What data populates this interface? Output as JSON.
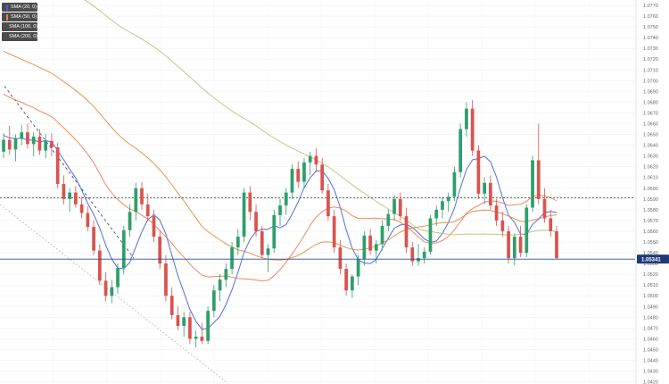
{
  "legend": [
    {
      "label": "SMA (20, 0)",
      "color": "#3d5fd6"
    },
    {
      "label": "SMA (50, 0)",
      "color": "#f07a4a"
    },
    {
      "label": "SMA (100, 0)",
      "color": "#e08a3a"
    },
    {
      "label": "SMA (200, 0)",
      "color": "#b9c27a"
    }
  ],
  "price_tag": "1.05341",
  "chart_data": {
    "type": "candlestick",
    "yticks": [
      "1.0770",
      "1.0760",
      "1.0750",
      "1.0740",
      "1.0730",
      "1.0720",
      "1.0710",
      "1.0700",
      "1.0690",
      "1.0680",
      "1.0670",
      "1.0660",
      "1.0650",
      "1.0640",
      "1.0630",
      "1.0620",
      "1.0610",
      "1.0600",
      "1.0590",
      "1.0580",
      "1.0570",
      "1.0560",
      "1.0550",
      "1.0540",
      "1.0530",
      "1.0520",
      "1.0510",
      "1.0500",
      "1.0490",
      "1.0480",
      "1.0470",
      "1.0460",
      "1.0450",
      "1.0440",
      "1.0430",
      "1.0420"
    ],
    "ylim": [
      1.0418,
      1.0775
    ],
    "current_price": 1.05341,
    "resistance_level": 1.0591,
    "up_color": "#2e9e6b",
    "down_color": "#d9534f",
    "candles": [
      [
        1.0634,
        1.0651,
        1.0628,
        1.0645
      ],
      [
        1.0645,
        1.0658,
        1.0631,
        1.0636
      ],
      [
        1.0636,
        1.065,
        1.0625,
        1.0646
      ],
      [
        1.0646,
        1.0659,
        1.064,
        1.0652
      ],
      [
        1.0652,
        1.066,
        1.0637,
        1.0641
      ],
      [
        1.0641,
        1.0652,
        1.063,
        1.0648
      ],
      [
        1.0648,
        1.0655,
        1.0631,
        1.0635
      ],
      [
        1.0635,
        1.065,
        1.0628,
        1.0644
      ],
      [
        1.0644,
        1.0651,
        1.063,
        1.0638
      ],
      [
        1.0638,
        1.0642,
        1.06,
        1.0604
      ],
      [
        1.0604,
        1.0612,
        1.0585,
        1.059
      ],
      [
        1.059,
        1.06,
        1.0578,
        1.0596
      ],
      [
        1.0596,
        1.0602,
        1.0582,
        1.0585
      ],
      [
        1.0585,
        1.0592,
        1.0572,
        1.0577
      ],
      [
        1.0577,
        1.0583,
        1.056,
        1.0564
      ],
      [
        1.0564,
        1.057,
        1.0538,
        1.0542
      ],
      [
        1.0542,
        1.0548,
        1.051,
        1.0514
      ],
      [
        1.0514,
        1.0522,
        1.0495,
        1.05
      ],
      [
        1.05,
        1.0515,
        1.0493,
        1.0508
      ],
      [
        1.0508,
        1.053,
        1.0502,
        1.0526
      ],
      [
        1.0526,
        1.0565,
        1.052,
        1.0561
      ],
      [
        1.0561,
        1.0585,
        1.0555,
        1.0578
      ],
      [
        1.0578,
        1.0605,
        1.057,
        1.06
      ],
      [
        1.06,
        1.0606,
        1.058,
        1.0585
      ],
      [
        1.0585,
        1.0595,
        1.057,
        1.0574
      ],
      [
        1.0574,
        1.058,
        1.055,
        1.0555
      ],
      [
        1.0555,
        1.056,
        1.0525,
        1.053
      ],
      [
        1.053,
        1.0538,
        1.0495,
        1.05
      ],
      [
        1.05,
        1.0508,
        1.0478,
        1.0482
      ],
      [
        1.0482,
        1.049,
        1.0468,
        1.0472
      ],
      [
        1.0472,
        1.0485,
        1.0462,
        1.048
      ],
      [
        1.048,
        1.0485,
        1.0455,
        1.046
      ],
      [
        1.046,
        1.0468,
        1.0452,
        1.0462
      ],
      [
        1.0462,
        1.0475,
        1.0455,
        1.0458
      ],
      [
        1.0458,
        1.049,
        1.0455,
        1.0486
      ],
      [
        1.0486,
        1.051,
        1.048,
        1.0505
      ],
      [
        1.0505,
        1.052,
        1.0495,
        1.0515
      ],
      [
        1.0515,
        1.053,
        1.0508,
        1.0525
      ],
      [
        1.0525,
        1.055,
        1.052,
        1.0545
      ],
      [
        1.0545,
        1.0562,
        1.0538,
        1.0555
      ],
      [
        1.0555,
        1.06,
        1.055,
        1.0596
      ],
      [
        1.0596,
        1.0602,
        1.057,
        1.0578
      ],
      [
        1.0578,
        1.0585,
        1.0555,
        1.056
      ],
      [
        1.056,
        1.0565,
        1.0535,
        1.0538
      ],
      [
        1.0538,
        1.0548,
        1.0522,
        1.0544
      ],
      [
        1.0544,
        1.058,
        1.054,
        1.0575
      ],
      [
        1.0575,
        1.059,
        1.0565,
        1.0584
      ],
      [
        1.0584,
        1.06,
        1.0575,
        1.0596
      ],
      [
        1.0596,
        1.0622,
        1.059,
        1.0618
      ],
      [
        1.0618,
        1.0625,
        1.06,
        1.0606
      ],
      [
        1.0606,
        1.0628,
        1.06,
        1.0624
      ],
      [
        1.0624,
        1.0634,
        1.0612,
        1.063
      ],
      [
        1.063,
        1.0637,
        1.0615,
        1.0622
      ],
      [
        1.0622,
        1.0628,
        1.0595,
        1.0598
      ],
      [
        1.0598,
        1.0604,
        1.057,
        1.0574
      ],
      [
        1.0574,
        1.058,
        1.054,
        1.0545
      ],
      [
        1.0545,
        1.0552,
        1.052,
        1.0525
      ],
      [
        1.0525,
        1.053,
        1.05,
        1.0505
      ],
      [
        1.0505,
        1.052,
        1.0498,
        1.0518
      ],
      [
        1.0518,
        1.0538,
        1.051,
        1.0534
      ],
      [
        1.0534,
        1.056,
        1.0528,
        1.0556
      ],
      [
        1.0556,
        1.0562,
        1.0538,
        1.0542
      ],
      [
        1.0542,
        1.0552,
        1.053,
        1.0548
      ],
      [
        1.0548,
        1.057,
        1.0542,
        1.0565
      ],
      [
        1.0565,
        1.058,
        1.056,
        1.0576
      ],
      [
        1.0576,
        1.0594,
        1.057,
        1.059
      ],
      [
        1.059,
        1.0596,
        1.057,
        1.0574
      ],
      [
        1.0574,
        1.0582,
        1.054,
        1.0545
      ],
      [
        1.0545,
        1.055,
        1.0528,
        1.0532
      ],
      [
        1.0532,
        1.0548,
        1.0528,
        1.0535
      ],
      [
        1.0535,
        1.0545,
        1.053,
        1.0541
      ],
      [
        1.0541,
        1.0575,
        1.0538,
        1.0572
      ],
      [
        1.0572,
        1.0584,
        1.0565,
        1.058
      ],
      [
        1.058,
        1.0592,
        1.0572,
        1.0588
      ],
      [
        1.0588,
        1.0596,
        1.0578,
        1.0592
      ],
      [
        1.0592,
        1.062,
        1.0588,
        1.0615
      ],
      [
        1.0615,
        1.066,
        1.061,
        1.0655
      ],
      [
        1.0655,
        1.068,
        1.0648,
        1.0674
      ],
      [
        1.0674,
        1.0682,
        1.063,
        1.0635
      ],
      [
        1.0635,
        1.064,
        1.059,
        1.0595
      ],
      [
        1.0595,
        1.061,
        1.0585,
        1.0605
      ],
      [
        1.0605,
        1.0612,
        1.058,
        1.0584
      ],
      [
        1.0584,
        1.059,
        1.0565,
        1.057
      ],
      [
        1.057,
        1.0578,
        1.0555,
        1.056
      ],
      [
        1.056,
        1.0565,
        1.053,
        1.0535
      ],
      [
        1.0535,
        1.0558,
        1.0528,
        1.0555
      ],
      [
        1.0555,
        1.0565,
        1.0536,
        1.054
      ],
      [
        1.054,
        1.0585,
        1.0536,
        1.0582
      ],
      [
        1.0582,
        1.063,
        1.0578,
        1.0626
      ],
      [
        1.0626,
        1.066,
        1.0585,
        1.059
      ],
      [
        1.059,
        1.06,
        1.0568,
        1.0572
      ],
      [
        1.0572,
        1.058,
        1.0555,
        1.056
      ],
      [
        1.056,
        1.0565,
        1.0534,
        1.0535
      ]
    ]
  }
}
